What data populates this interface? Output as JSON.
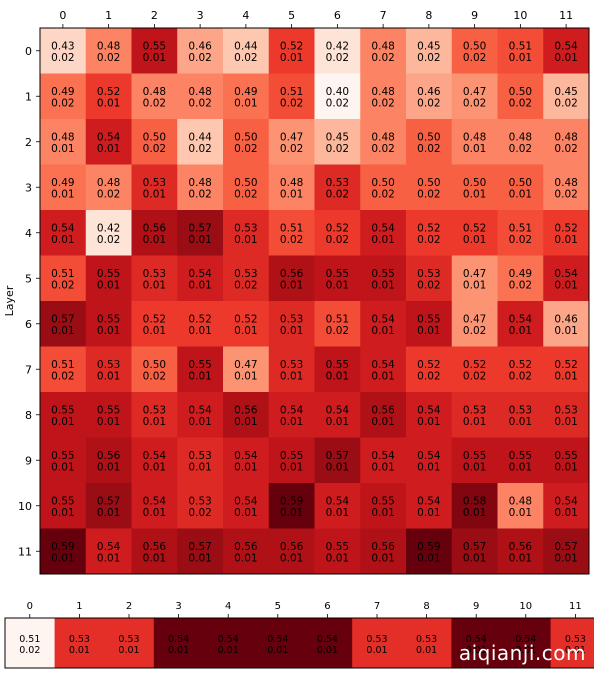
{
  "chart_data": [
    {
      "type": "heatmap",
      "ylabel": "Layer",
      "x_ticks": [
        "0",
        "1",
        "2",
        "3",
        "4",
        "5",
        "6",
        "7",
        "8",
        "9",
        "10",
        "11"
      ],
      "y_ticks": [
        "0",
        "1",
        "2",
        "3",
        "4",
        "5",
        "6",
        "7",
        "8",
        "9",
        "10",
        "11"
      ],
      "colormap": "Reds",
      "value_range": [
        0.4,
        0.59
      ],
      "cells": [
        [
          [
            "0.43",
            "0.02"
          ],
          [
            "0.48",
            "0.02"
          ],
          [
            "0.55",
            "0.01"
          ],
          [
            "0.46",
            "0.02"
          ],
          [
            "0.44",
            "0.02"
          ],
          [
            "0.52",
            "0.01"
          ],
          [
            "0.42",
            "0.02"
          ],
          [
            "0.48",
            "0.02"
          ],
          [
            "0.45",
            "0.02"
          ],
          [
            "0.50",
            "0.02"
          ],
          [
            "0.51",
            "0.01"
          ],
          [
            "0.54",
            "0.01"
          ]
        ],
        [
          [
            "0.49",
            "0.02"
          ],
          [
            "0.52",
            "0.01"
          ],
          [
            "0.48",
            "0.02"
          ],
          [
            "0.48",
            "0.02"
          ],
          [
            "0.49",
            "0.01"
          ],
          [
            "0.51",
            "0.02"
          ],
          [
            "0.40",
            "0.02"
          ],
          [
            "0.48",
            "0.02"
          ],
          [
            "0.46",
            "0.02"
          ],
          [
            "0.47",
            "0.02"
          ],
          [
            "0.50",
            "0.02"
          ],
          [
            "0.45",
            "0.02"
          ]
        ],
        [
          [
            "0.48",
            "0.01"
          ],
          [
            "0.54",
            "0.01"
          ],
          [
            "0.50",
            "0.02"
          ],
          [
            "0.44",
            "0.02"
          ],
          [
            "0.50",
            "0.02"
          ],
          [
            "0.47",
            "0.02"
          ],
          [
            "0.45",
            "0.02"
          ],
          [
            "0.48",
            "0.02"
          ],
          [
            "0.50",
            "0.02"
          ],
          [
            "0.48",
            "0.01"
          ],
          [
            "0.48",
            "0.02"
          ],
          [
            "0.48",
            "0.02"
          ]
        ],
        [
          [
            "0.49",
            "0.01"
          ],
          [
            "0.48",
            "0.02"
          ],
          [
            "0.53",
            "0.01"
          ],
          [
            "0.48",
            "0.02"
          ],
          [
            "0.50",
            "0.02"
          ],
          [
            "0.48",
            "0.01"
          ],
          [
            "0.53",
            "0.02"
          ],
          [
            "0.50",
            "0.02"
          ],
          [
            "0.50",
            "0.02"
          ],
          [
            "0.50",
            "0.01"
          ],
          [
            "0.50",
            "0.01"
          ],
          [
            "0.48",
            "0.02"
          ]
        ],
        [
          [
            "0.54",
            "0.01"
          ],
          [
            "0.42",
            "0.02"
          ],
          [
            "0.56",
            "0.01"
          ],
          [
            "0.57",
            "0.01"
          ],
          [
            "0.53",
            "0.01"
          ],
          [
            "0.51",
            "0.02"
          ],
          [
            "0.52",
            "0.02"
          ],
          [
            "0.54",
            "0.01"
          ],
          [
            "0.52",
            "0.02"
          ],
          [
            "0.52",
            "0.01"
          ],
          [
            "0.51",
            "0.02"
          ],
          [
            "0.52",
            "0.01"
          ]
        ],
        [
          [
            "0.51",
            "0.02"
          ],
          [
            "0.55",
            "0.01"
          ],
          [
            "0.53",
            "0.01"
          ],
          [
            "0.54",
            "0.01"
          ],
          [
            "0.53",
            "0.02"
          ],
          [
            "0.56",
            "0.01"
          ],
          [
            "0.55",
            "0.01"
          ],
          [
            "0.55",
            "0.01"
          ],
          [
            "0.53",
            "0.02"
          ],
          [
            "0.47",
            "0.01"
          ],
          [
            "0.49",
            "0.02"
          ],
          [
            "0.54",
            "0.01"
          ]
        ],
        [
          [
            "0.57",
            "0.01"
          ],
          [
            "0.55",
            "0.01"
          ],
          [
            "0.52",
            "0.01"
          ],
          [
            "0.52",
            "0.01"
          ],
          [
            "0.52",
            "0.01"
          ],
          [
            "0.53",
            "0.01"
          ],
          [
            "0.51",
            "0.02"
          ],
          [
            "0.54",
            "0.01"
          ],
          [
            "0.55",
            "0.01"
          ],
          [
            "0.47",
            "0.02"
          ],
          [
            "0.54",
            "0.01"
          ],
          [
            "0.46",
            "0.01"
          ]
        ],
        [
          [
            "0.51",
            "0.02"
          ],
          [
            "0.53",
            "0.01"
          ],
          [
            "0.50",
            "0.02"
          ],
          [
            "0.55",
            "0.01"
          ],
          [
            "0.47",
            "0.01"
          ],
          [
            "0.53",
            "0.01"
          ],
          [
            "0.55",
            "0.01"
          ],
          [
            "0.54",
            "0.01"
          ],
          [
            "0.52",
            "0.02"
          ],
          [
            "0.52",
            "0.02"
          ],
          [
            "0.52",
            "0.02"
          ],
          [
            "0.52",
            "0.01"
          ]
        ],
        [
          [
            "0.55",
            "0.01"
          ],
          [
            "0.55",
            "0.01"
          ],
          [
            "0.53",
            "0.01"
          ],
          [
            "0.54",
            "0.01"
          ],
          [
            "0.56",
            "0.01"
          ],
          [
            "0.54",
            "0.01"
          ],
          [
            "0.54",
            "0.01"
          ],
          [
            "0.56",
            "0.01"
          ],
          [
            "0.54",
            "0.01"
          ],
          [
            "0.53",
            "0.01"
          ],
          [
            "0.53",
            "0.01"
          ],
          [
            "0.53",
            "0.01"
          ]
        ],
        [
          [
            "0.55",
            "0.01"
          ],
          [
            "0.56",
            "0.01"
          ],
          [
            "0.54",
            "0.01"
          ],
          [
            "0.53",
            "0.01"
          ],
          [
            "0.54",
            "0.01"
          ],
          [
            "0.55",
            "0.01"
          ],
          [
            "0.57",
            "0.01"
          ],
          [
            "0.54",
            "0.01"
          ],
          [
            "0.54",
            "0.01"
          ],
          [
            "0.55",
            "0.01"
          ],
          [
            "0.55",
            "0.01"
          ],
          [
            "0.55",
            "0.01"
          ]
        ],
        [
          [
            "0.55",
            "0.01"
          ],
          [
            "0.57",
            "0.01"
          ],
          [
            "0.54",
            "0.01"
          ],
          [
            "0.53",
            "0.02"
          ],
          [
            "0.54",
            "0.01"
          ],
          [
            "0.59",
            "0.01"
          ],
          [
            "0.54",
            "0.01"
          ],
          [
            "0.55",
            "0.01"
          ],
          [
            "0.54",
            "0.01"
          ],
          [
            "0.58",
            "0.01"
          ],
          [
            "0.48",
            "0.01"
          ],
          [
            "0.54",
            "0.01"
          ]
        ],
        [
          [
            "0.59",
            "0.01"
          ],
          [
            "0.54",
            "0.01"
          ],
          [
            "0.56",
            "0.01"
          ],
          [
            "0.57",
            "0.01"
          ],
          [
            "0.56",
            "0.01"
          ],
          [
            "0.56",
            "0.01"
          ],
          [
            "0.55",
            "0.01"
          ],
          [
            "0.56",
            "0.01"
          ],
          [
            "0.59",
            "0.01"
          ],
          [
            "0.57",
            "0.01"
          ],
          [
            "0.56",
            "0.01"
          ],
          [
            "0.57",
            "0.01"
          ]
        ]
      ]
    },
    {
      "type": "heatmap",
      "x_ticks": [
        "0",
        "1",
        "2",
        "3",
        "4",
        "5",
        "6",
        "7",
        "8",
        "9",
        "10",
        "11"
      ],
      "colormap": "Reds",
      "value_range": [
        0.51,
        0.54
      ],
      "cells": [
        [
          [
            "0.51",
            "0.02"
          ],
          [
            "0.53",
            "0.01"
          ],
          [
            "0.53",
            "0.01"
          ],
          [
            "0.54",
            "0.01"
          ],
          [
            "0.54",
            "0.01"
          ],
          [
            "0.54",
            "0.01"
          ],
          [
            "0.54",
            "0.01"
          ],
          [
            "0.53",
            "0.01"
          ],
          [
            "0.53",
            "0.01"
          ],
          [
            "0.54",
            "0.01"
          ],
          [
            "0.54",
            "0.01"
          ],
          [
            "0.53",
            "0.01"
          ]
        ]
      ]
    }
  ],
  "watermark": "aiqianji.com"
}
